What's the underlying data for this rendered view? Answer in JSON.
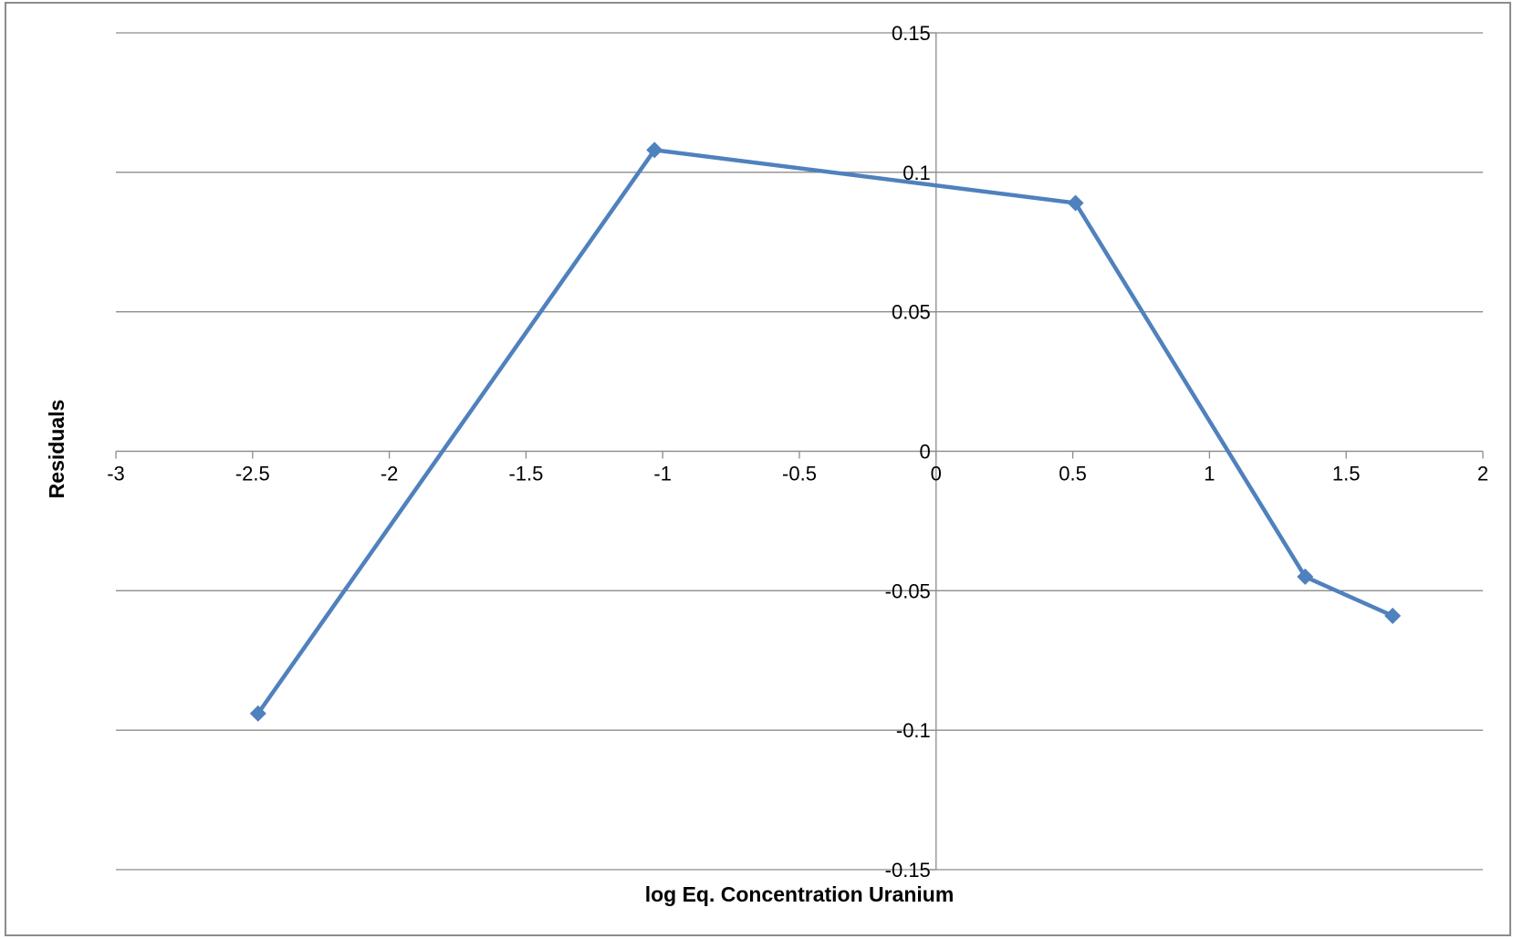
{
  "chart_data": {
    "type": "line",
    "title": "",
    "xlabel": "log Eq. Concentration Uranium",
    "ylabel": "Residuals",
    "xlim": [
      -3,
      2
    ],
    "ylim": [
      -0.15,
      0.15
    ],
    "x_ticks": [
      -3,
      -2.5,
      -2,
      -1.5,
      -1,
      -0.5,
      0,
      0.5,
      1,
      1.5,
      2
    ],
    "x_tick_labels": [
      "-3",
      "-2.5",
      "-2",
      "-1.5",
      "-1",
      "-0.5",
      "0",
      "0.5",
      "1",
      "1.5",
      "2"
    ],
    "y_ticks": [
      0.15,
      0.1,
      0.05,
      0,
      -0.05,
      -0.1,
      -0.15
    ],
    "y_tick_labels": [
      "0.15",
      "0.1",
      "0.05",
      "0",
      "-0.05",
      "-0.1",
      "-0.15"
    ],
    "grid": {
      "horizontal": true,
      "vertical": false
    },
    "legend": "none",
    "marker": "diamond",
    "series": [
      {
        "color": "#4f81bd",
        "points": [
          {
            "x": -2.48,
            "y": -0.094
          },
          {
            "x": -1.03,
            "y": 0.108
          },
          {
            "x": 0.51,
            "y": 0.089
          },
          {
            "x": 1.35,
            "y": -0.045
          },
          {
            "x": 1.67,
            "y": -0.059
          }
        ]
      }
    ]
  }
}
